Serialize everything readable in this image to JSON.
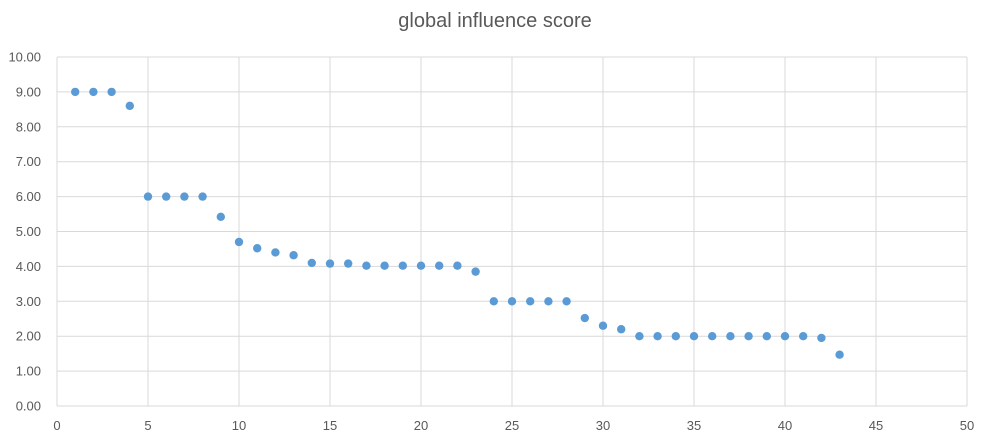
{
  "chart_data": {
    "type": "scatter",
    "title": "global influence score",
    "xlabel": "",
    "ylabel": "",
    "xlim": [
      0,
      50
    ],
    "ylim": [
      0,
      10
    ],
    "x_ticks": [
      0,
      5,
      10,
      15,
      20,
      25,
      30,
      35,
      40,
      45,
      50
    ],
    "y_ticks": [
      "0.00",
      "1.00",
      "2.00",
      "3.00",
      "4.00",
      "5.00",
      "6.00",
      "7.00",
      "8.00",
      "9.00",
      "10.00"
    ],
    "grid": true,
    "legend": "none",
    "marker_color": "#5b9bd5",
    "series": [
      {
        "x": [
          1,
          2,
          3,
          4,
          5,
          6,
          7,
          8,
          9,
          10,
          11,
          12,
          13,
          14,
          15,
          16,
          17,
          18,
          19,
          20,
          21,
          22,
          23,
          24,
          25,
          26,
          27,
          28,
          29,
          30,
          31,
          32,
          33,
          34,
          35,
          36,
          37,
          38,
          39,
          40,
          41,
          42,
          43
        ],
        "y": [
          9.0,
          9.0,
          9.0,
          8.6,
          6.0,
          6.0,
          6.0,
          6.0,
          5.42,
          4.7,
          4.52,
          4.4,
          4.32,
          4.1,
          4.08,
          4.08,
          4.02,
          4.02,
          4.02,
          4.02,
          4.02,
          4.02,
          3.85,
          3.0,
          3.0,
          3.0,
          3.0,
          3.0,
          2.52,
          2.3,
          2.2,
          2.0,
          2.0,
          2.0,
          2.0,
          2.0,
          2.0,
          2.0,
          2.0,
          2.0,
          2.0,
          1.95,
          1.47
        ]
      }
    ]
  }
}
